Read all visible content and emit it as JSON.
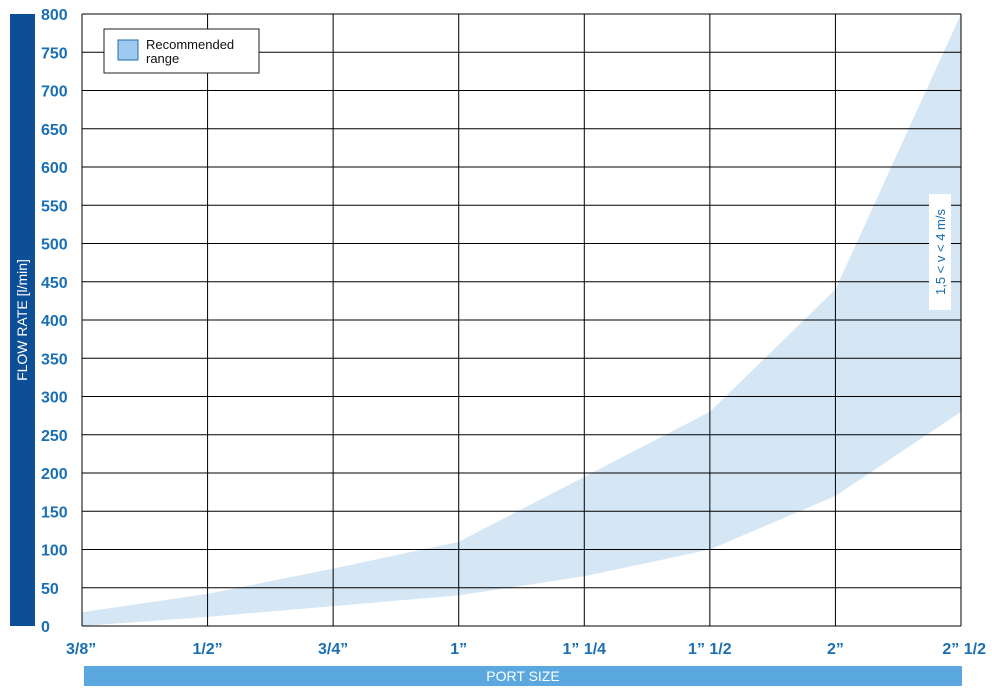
{
  "colors": {
    "accent": "#1a6fb3",
    "y_bar": "#0d4f96",
    "x_bar": "#5ba8e0",
    "band": "#d5e6f5",
    "legend_swatch": "#9fc9ee",
    "grid": "#000000"
  },
  "chart_data": {
    "type": "area",
    "xlabel": "PORT SIZE",
    "ylabel": "FLOW RATE   [l/min]",
    "categories": [
      "3/8\"",
      "1/2\"",
      "3/4\"",
      "1\"",
      "1\" 1/4",
      "1\" 1/2",
      "2\"",
      "2\" 1/2"
    ],
    "category_display": [
      "3/8”",
      "1/2”",
      "3/4”",
      "1”",
      "1” 1/4",
      "1” 1/2",
      "2”",
      "2” 1/2"
    ],
    "ylim": [
      0,
      800
    ],
    "yticks": [
      0,
      50,
      100,
      150,
      200,
      250,
      300,
      350,
      400,
      450,
      500,
      550,
      600,
      650,
      700,
      750,
      800
    ],
    "grid": true,
    "legend": {
      "label": "Recommended range",
      "placement": "top-left"
    },
    "annotation": "1,5 < v < 4 m/s",
    "series": [
      {
        "name": "Recommended range",
        "lower": [
          0,
          12,
          26,
          40,
          65,
          100,
          170,
          280
        ],
        "upper": [
          18,
          42,
          75,
          110,
          195,
          280,
          440,
          800
        ]
      }
    ]
  }
}
